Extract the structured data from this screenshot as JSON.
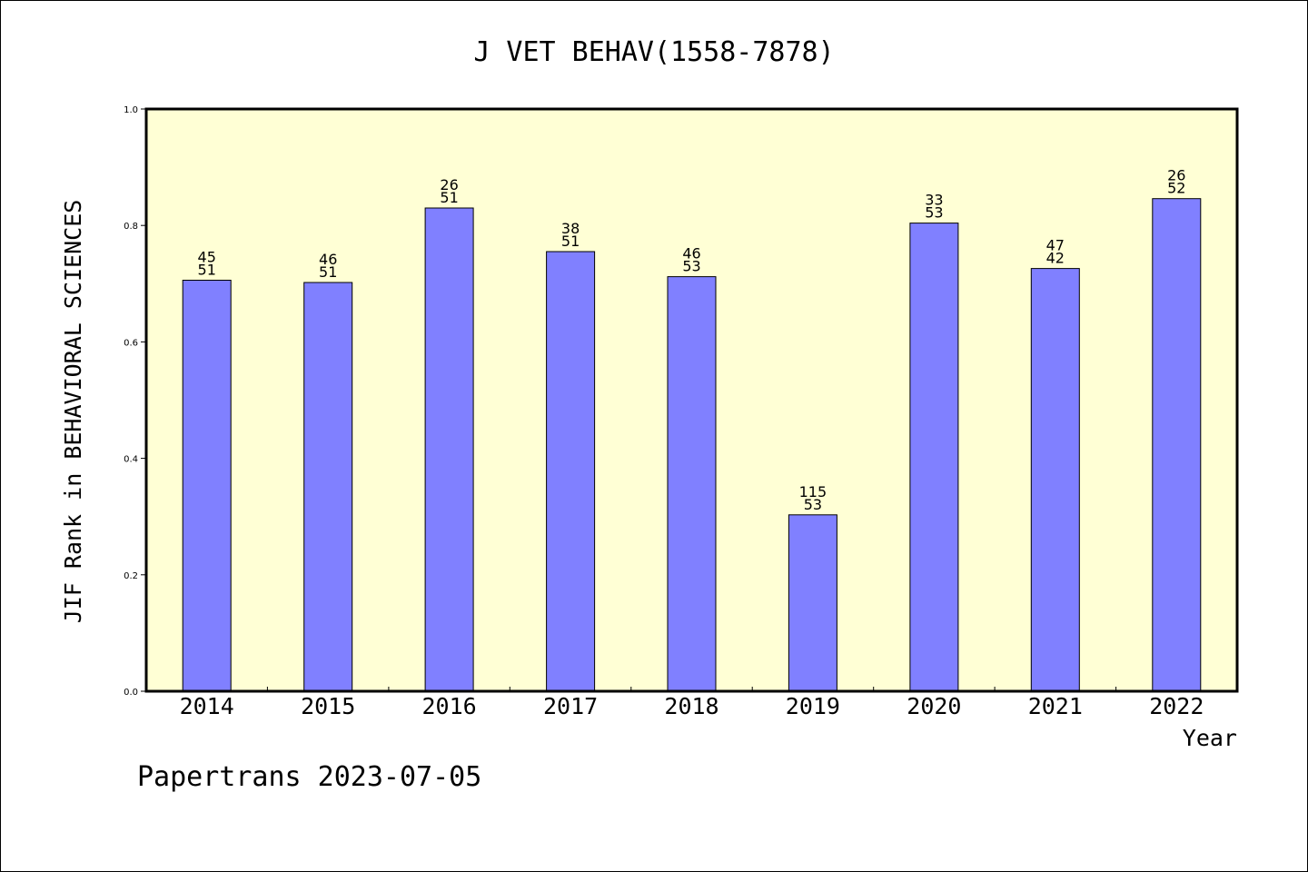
{
  "chart_data": {
    "type": "bar",
    "title": "J VET BEHAV(1558-7878)",
    "xlabel": "Year",
    "ylabel": "JIF Rank in BEHAVIORAL SCIENCES",
    "categories": [
      "2014",
      "2015",
      "2016",
      "2017",
      "2018",
      "2019",
      "2020",
      "2021",
      "2022"
    ],
    "values": [
      0.706,
      0.702,
      0.83,
      0.755,
      0.712,
      0.303,
      0.804,
      0.726,
      0.846
    ],
    "bar_labels": [
      [
        "45",
        "51"
      ],
      [
        "46",
        "51"
      ],
      [
        "26",
        "51"
      ],
      [
        "38",
        "51"
      ],
      [
        "46",
        "53"
      ],
      [
        "115",
        "53"
      ],
      [
        "33",
        "53"
      ],
      [
        "47",
        "42"
      ],
      [
        "26",
        "52"
      ]
    ],
    "ylim": [
      0,
      1.0
    ],
    "yticks": [
      "0.0",
      "0.2",
      "0.4",
      "0.6",
      "0.8",
      "1.0"
    ],
    "grid": false,
    "colors": {
      "bar_fill": "#8080ff",
      "plot_background": "#ffffd5",
      "bar_stroke": "#000000"
    }
  },
  "footer": {
    "text": "Papertrans 2023-07-05"
  }
}
